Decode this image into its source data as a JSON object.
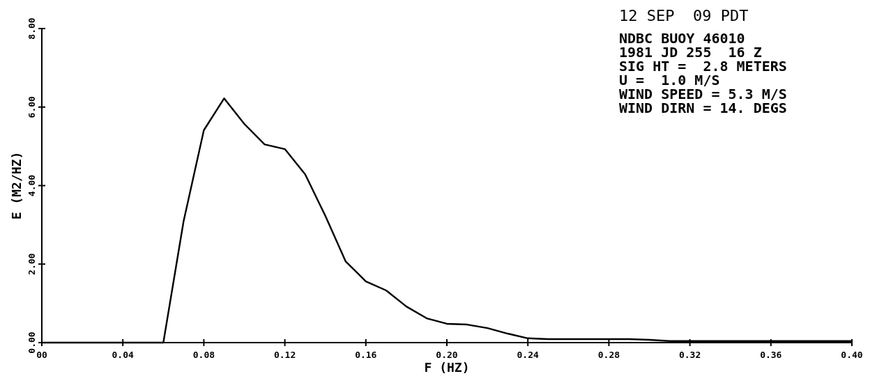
{
  "chart_data": {
    "type": "line",
    "xlabel": "F (HZ)",
    "ylabel": "E (M2/HZ)",
    "annotations": [
      "12 SEP  09 PDT",
      "NDBC BUOY 46010",
      "1981 JD 255  16 Z",
      "SIG HT =  2.8 METERS",
      "U =  1.0 M/S",
      "WIND SPEED = 5.3 M/S",
      "WIND DIRN = 14. DEGS"
    ],
    "x": [
      0,
      0.01,
      0.02,
      0.03,
      0.04,
      0.05,
      0.06,
      0.07,
      0.08,
      0.09,
      0.1,
      0.11,
      0.12,
      0.13,
      0.14,
      0.15,
      0.16,
      0.17,
      0.18,
      0.19,
      0.2,
      0.21,
      0.22,
      0.23,
      0.24,
      0.25,
      0.26,
      0.27,
      0.28,
      0.29,
      0.3,
      0.31,
      0.32,
      0.33,
      0.34,
      0.35,
      0.36,
      0.37,
      0.38,
      0.39,
      0.4
    ],
    "series": [
      {
        "color": "#000000",
        "values": [
          0,
          0,
          0,
          0,
          0,
          0,
          0,
          3.09,
          5.41,
          6.22,
          5.57,
          5.05,
          4.93,
          4.29,
          3.23,
          2.07,
          1.56,
          1.33,
          0.92,
          0.62,
          0.48,
          0.46,
          0.37,
          0.23,
          0.11,
          0.09,
          0.09,
          0.09,
          0.09,
          0.09,
          0.07,
          0.04,
          0.04,
          0.04,
          0.04,
          0.04,
          0.04,
          0.04,
          0.04,
          0.04,
          0.04
        ]
      }
    ],
    "xlim": [
      0,
      0.4
    ],
    "ylim": [
      0,
      8
    ],
    "xticks": [
      {
        "value": 0,
        "label": "00"
      },
      {
        "value": 0.04,
        "label": "0.04"
      },
      {
        "value": 0.08,
        "label": "0.08"
      },
      {
        "value": 0.12,
        "label": "0.12"
      },
      {
        "value": 0.16,
        "label": "0.16"
      },
      {
        "value": 0.2,
        "label": "0.20"
      },
      {
        "value": 0.24,
        "label": "0.24"
      },
      0.28,
      {
        "value": 0.32,
        "label": "0.32"
      },
      {
        "value": 0.36,
        "label": "0.36"
      },
      {
        "value": 0.4,
        "label": "0.40"
      }
    ],
    "yticks": [
      {
        "value": 0,
        "label": "0.00"
      },
      {
        "value": 2,
        "label": "2.00"
      },
      {
        "value": 4,
        "label": "4.00"
      },
      {
        "value": 6,
        "label": "6.00"
      },
      {
        "value": 8,
        "label": "8.00"
      }
    ],
    "grid": false,
    "marker": "none",
    "line_style": "solid"
  }
}
